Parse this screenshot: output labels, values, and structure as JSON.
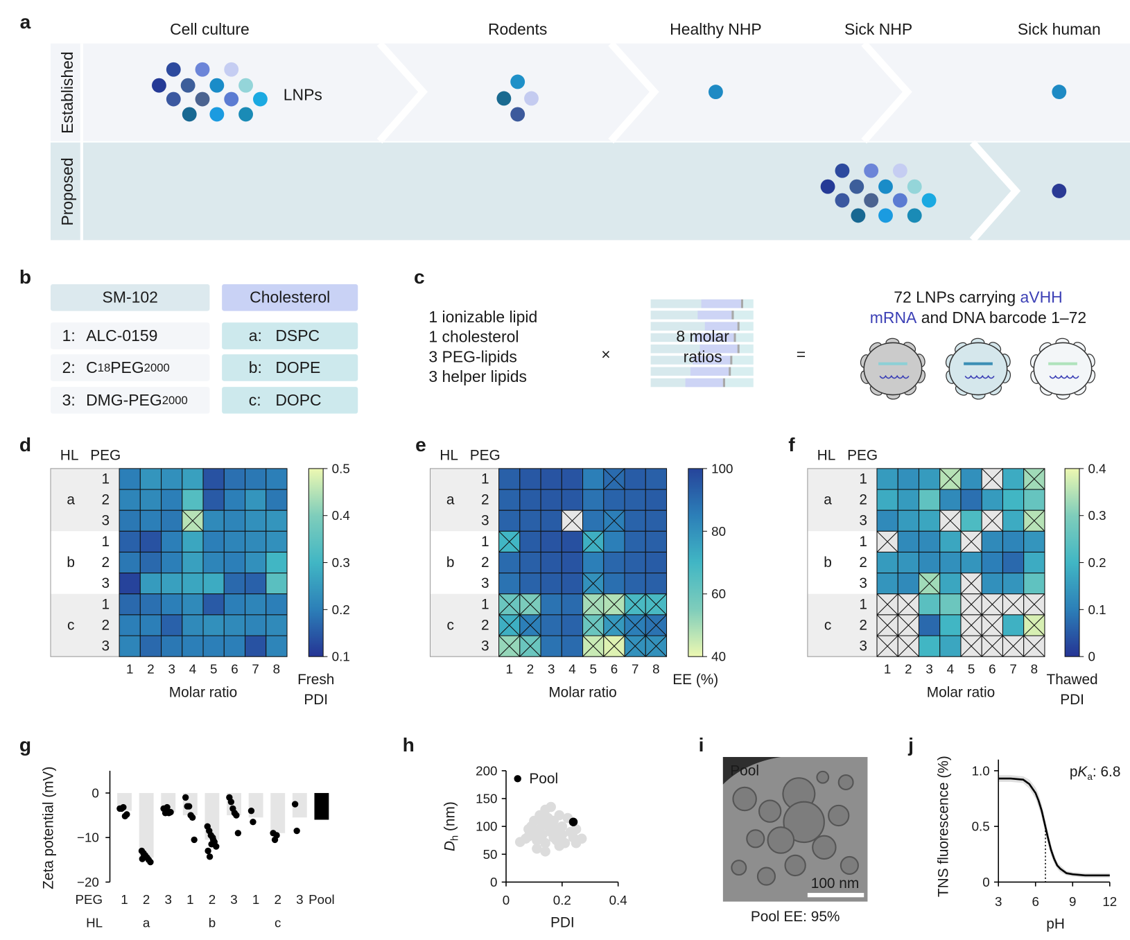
{
  "panel_labels": [
    "a",
    "b",
    "c",
    "d",
    "e",
    "f",
    "g",
    "h",
    "i",
    "j"
  ],
  "panel_a": {
    "stages": [
      "Cell culture",
      "Rodents",
      "Healthy NHP",
      "Sick NHP",
      "Sick human"
    ],
    "rows": [
      "Established",
      "Proposed"
    ],
    "cluster_label": "LNPs"
  },
  "panel_b": {
    "headers": [
      "SM-102",
      "Cholesterol"
    ],
    "peg_lipids": [
      {
        "index": "1:",
        "name": [
          "ALC-0159"
        ]
      },
      {
        "index": "2:",
        "name": [
          "C",
          "18",
          "PEG",
          "2000"
        ]
      },
      {
        "index": "3:",
        "name": [
          "DMG-PEG",
          "2000"
        ]
      }
    ],
    "helper_lipids": [
      {
        "index": "a:",
        "name": "DSPC"
      },
      {
        "index": "b:",
        "name": "DOPE"
      },
      {
        "index": "c:",
        "name": "DOPC"
      }
    ]
  },
  "panel_c": {
    "components": [
      "1 ionizable lipid",
      "1 cholesterol",
      "3 PEG-lipids",
      "3 helper lipids"
    ],
    "times": "×",
    "ratios": [
      "8 molar",
      "ratios"
    ],
    "equals": "=",
    "result": [
      [
        {
          "text": "72 LNPs carrying "
        },
        {
          "text": "aVHH",
          "color": "#3b3fb5"
        }
      ],
      [
        {
          "text": "mRNA",
          "color": "#3b3fb5"
        },
        {
          "text": " and DNA barcode 1–72"
        }
      ]
    ]
  },
  "panel_i": {
    "inset_label": "Pool",
    "scale_bar": "100 nm",
    "caption": "Pool EE: 95%"
  },
  "chart_data": [
    {
      "type": "heatmap",
      "group_header": "HL",
      "row_header": "PEG",
      "row_groups": [
        "a",
        "b",
        "c"
      ],
      "rows": [
        "1",
        "2",
        "3"
      ],
      "categories": [
        "1",
        "2",
        "3",
        "4",
        "5",
        "6",
        "7",
        "8"
      ],
      "xlabel": "Molar ratio",
      "colorbar_label": [
        "Fresh",
        "PDI"
      ],
      "clim": [
        0.1,
        0.5
      ],
      "cticks": [
        0.1,
        0.2,
        0.3,
        0.4,
        0.5
      ],
      "colormap": [
        "#253494",
        "#2c7fb8",
        "#41b6c4",
        "#7fcdbb",
        "#edf8b1"
      ],
      "missing_color": "#e6e6e6",
      "values": [
        [
          0.2,
          0.24,
          0.23,
          0.26,
          0.14,
          0.18,
          0.19,
          0.2
        ],
        [
          0.21,
          0.22,
          0.2,
          0.33,
          0.15,
          0.2,
          0.24,
          0.19
        ],
        [
          0.19,
          0.2,
          0.19,
          0.45,
          0.22,
          0.21,
          0.23,
          0.24
        ],
        [
          0.16,
          0.14,
          0.2,
          0.27,
          0.2,
          0.21,
          0.22,
          0.23
        ],
        [
          0.19,
          0.17,
          0.2,
          0.26,
          0.21,
          0.2,
          0.23,
          0.3
        ],
        [
          0.12,
          0.25,
          0.26,
          0.27,
          0.28,
          0.17,
          0.16,
          0.34
        ],
        [
          0.17,
          0.18,
          0.2,
          0.22,
          0.15,
          0.2,
          0.21,
          0.2
        ],
        [
          0.2,
          0.2,
          0.16,
          0.22,
          0.23,
          0.22,
          0.21,
          0.22
        ],
        [
          0.21,
          0.17,
          0.19,
          0.2,
          0.2,
          0.2,
          0.14,
          0.21
        ]
      ],
      "crossed": [
        [
          2,
          3
        ]
      ]
    },
    {
      "type": "heatmap",
      "group_header": "HL",
      "row_header": "PEG",
      "row_groups": [
        "a",
        "b",
        "c"
      ],
      "rows": [
        "1",
        "2",
        "3"
      ],
      "categories": [
        "1",
        "2",
        "3",
        "4",
        "5",
        "6",
        "7",
        "8"
      ],
      "xlabel": "Molar ratio",
      "colorbar_label": [
        "EE (%)"
      ],
      "clim": [
        40,
        100
      ],
      "cticks": [
        40,
        60,
        80,
        100
      ],
      "colormap": [
        "#edf8b1",
        "#7fcdbb",
        "#41b6c4",
        "#2c7fb8",
        "#26449a"
      ],
      "missing_color": "#e6e6e6",
      "values": [
        [
          93,
          95,
          96,
          96,
          85,
          90,
          94,
          93
        ],
        [
          92,
          94,
          95,
          95,
          88,
          92,
          93,
          94
        ],
        [
          92,
          93,
          94,
          null,
          88,
          85,
          92,
          93
        ],
        [
          70,
          94,
          96,
          97,
          72,
          85,
          92,
          93
        ],
        [
          90,
          93,
          95,
          96,
          85,
          91,
          93,
          94
        ],
        [
          88,
          92,
          94,
          95,
          80,
          89,
          92,
          93
        ],
        [
          60,
          56,
          88,
          90,
          50,
          48,
          68,
          68
        ],
        [
          72,
          85,
          90,
          92,
          60,
          78,
          85,
          88
        ],
        [
          52,
          60,
          88,
          90,
          45,
          42,
          80,
          80
        ]
      ],
      "crossed": [
        [
          0,
          5
        ],
        [
          2,
          5
        ],
        [
          3,
          0
        ],
        [
          3,
          4
        ],
        [
          5,
          4
        ],
        [
          6,
          0
        ],
        [
          6,
          1
        ],
        [
          6,
          4
        ],
        [
          6,
          5
        ],
        [
          6,
          6
        ],
        [
          6,
          7
        ],
        [
          7,
          0
        ],
        [
          7,
          1
        ],
        [
          7,
          4
        ],
        [
          7,
          5
        ],
        [
          7,
          6
        ],
        [
          7,
          7
        ],
        [
          8,
          0
        ],
        [
          8,
          1
        ],
        [
          8,
          4
        ],
        [
          8,
          5
        ],
        [
          8,
          6
        ],
        [
          8,
          7
        ]
      ]
    },
    {
      "type": "heatmap",
      "group_header": "HL",
      "row_header": "PEG",
      "row_groups": [
        "a",
        "b",
        "c"
      ],
      "rows": [
        "1",
        "2",
        "3"
      ],
      "categories": [
        "1",
        "2",
        "3",
        "4",
        "5",
        "6",
        "7",
        "8"
      ],
      "xlabel": "Molar ratio",
      "colorbar_label": [
        "Thawed",
        "PDI"
      ],
      "clim": [
        0,
        0.4
      ],
      "cticks": [
        0,
        0.1,
        0.2,
        0.3,
        0.4
      ],
      "colormap": [
        "#253494",
        "#2c7fb8",
        "#41b6c4",
        "#7fcdbb",
        "#edf8b1"
      ],
      "missing_color": "#e6e6e6",
      "values": [
        [
          0.15,
          0.13,
          0.15,
          0.35,
          0.13,
          null,
          0.18,
          0.33
        ],
        [
          0.18,
          0.15,
          0.25,
          0.12,
          0.08,
          0.15,
          0.2,
          0.26
        ],
        [
          0.12,
          0.15,
          0.17,
          null,
          0.22,
          null,
          0.18,
          0.35
        ],
        [
          null,
          0.12,
          0.12,
          0.17,
          null,
          0.12,
          0.11,
          0.14
        ],
        [
          0.15,
          0.14,
          0.12,
          0.13,
          0.14,
          0.1,
          0.07,
          0.18
        ],
        [
          0.14,
          0.12,
          0.33,
          0.17,
          null,
          0.13,
          0.14,
          0.25
        ],
        [
          null,
          null,
          0.24,
          0.27,
          null,
          null,
          null,
          null
        ],
        [
          null,
          null,
          0.07,
          0.2,
          null,
          null,
          0.19,
          0.38
        ],
        [
          null,
          null,
          0.2,
          0.17,
          null,
          null,
          null,
          null
        ]
      ],
      "crossed": [
        [
          0,
          3
        ],
        [
          0,
          7
        ],
        [
          2,
          7
        ],
        [
          5,
          2
        ],
        [
          7,
          7
        ]
      ]
    },
    {
      "type": "bar",
      "ylabel": "Zeta potential (mV)",
      "category_row_label": "PEG",
      "group_row_label": "HL",
      "categories": [
        "1",
        "2",
        "3",
        "1",
        "2",
        "3",
        "1",
        "2",
        "3",
        "Pool"
      ],
      "groups": [
        "a",
        "b",
        "c"
      ],
      "values": [
        -4,
        -14.5,
        -4.3,
        -5,
        -10.5,
        -5,
        -5.5,
        -9,
        -5.5,
        -6
      ],
      "colors": [
        "#e5e5e5",
        "#e5e5e5",
        "#e5e5e5",
        "#e5e5e5",
        "#e5e5e5",
        "#e5e5e5",
        "#e5e5e5",
        "#e5e5e5",
        "#e5e5e5",
        "#000000"
      ],
      "point_color": "#000000",
      "points": [
        [
          -3.5,
          -3.5,
          -3.2,
          -5.2,
          -4.8
        ],
        [
          -13,
          -13.5,
          -14,
          -14.5,
          -15,
          -15.5,
          -14.8,
          -14
        ],
        [
          -3.5,
          -4.5,
          -3.2,
          -4.5,
          -4.3
        ],
        [
          -1,
          -3,
          -3,
          -5,
          -5.5,
          -10.5
        ],
        [
          -7.5,
          -8.5,
          -9.5,
          -10,
          -11,
          -12,
          -13,
          -14.3,
          -11.5,
          -10.5
        ],
        [
          -1,
          -2,
          -3.5,
          -4.5,
          -5,
          -9
        ],
        [
          -4,
          -6.5
        ],
        [
          -9,
          -10.5,
          -9.5
        ],
        [
          -2.5,
          -8.5
        ],
        []
      ],
      "ylim": [
        -20,
        5
      ],
      "yticks": [
        {
          "value": -20,
          "label": "−20"
        },
        {
          "value": -10,
          "label": "−10"
        },
        0
      ]
    },
    {
      "type": "scatter",
      "xlabel": "PDI",
      "ylabel": [
        "D",
        "h",
        " (nm)"
      ],
      "xlim": [
        0,
        0.4
      ],
      "xticks": [
        0,
        0.2,
        0.4
      ],
      "ylim": [
        0,
        200
      ],
      "yticks": [
        0,
        50,
        100,
        150,
        200
      ],
      "series": [
        {
          "color": "#dcdcdc",
          "x": [
            0.05,
            0.07,
            0.08,
            0.09,
            0.1,
            0.1,
            0.11,
            0.12,
            0.12,
            0.13,
            0.13,
            0.14,
            0.14,
            0.15,
            0.15,
            0.16,
            0.16,
            0.17,
            0.17,
            0.18,
            0.18,
            0.19,
            0.2,
            0.2,
            0.21,
            0.22,
            0.23,
            0.24,
            0.25,
            0.25,
            0.27,
            0.08,
            0.11,
            0.14,
            0.19
          ],
          "y": [
            72,
            78,
            95,
            100,
            88,
            110,
            75,
            120,
            95,
            85,
            105,
            130,
            70,
            100,
            115,
            90,
            135,
            80,
            110,
            95,
            75,
            120,
            85,
            100,
            70,
            115,
            90,
            80,
            95,
            70,
            78,
            82,
            60,
            55,
            65
          ]
        },
        {
          "name": "Pool",
          "color": "#000000",
          "x": [
            0.24
          ],
          "y": [
            108
          ]
        }
      ]
    },
    {
      "type": "line",
      "xlabel": "pH",
      "ylabel": "TNS fluorescence (%)",
      "annotation": [
        "p",
        "K",
        "a",
        ": 6.8"
      ],
      "pka": 6.8,
      "x": [
        3,
        4,
        5,
        5.5,
        6,
        6.25,
        6.5,
        6.75,
        7,
        7.25,
        7.5,
        7.75,
        8,
        8.5,
        9,
        10,
        11,
        12
      ],
      "series": [
        {
          "color": "#000000",
          "band_color": "#dedede",
          "values": [
            0.93,
            0.93,
            0.92,
            0.88,
            0.8,
            0.73,
            0.64,
            0.52,
            0.4,
            0.29,
            0.21,
            0.15,
            0.12,
            0.08,
            0.07,
            0.06,
            0.06,
            0.06
          ],
          "error": [
            0.03,
            0.03,
            0.03,
            0.04,
            0.05,
            0.06,
            0.06,
            0.06,
            0.06,
            0.05,
            0.04,
            0.03,
            0.03,
            0.02,
            0.02,
            0.02,
            0.02,
            0.02
          ]
        }
      ],
      "xlim": [
        3,
        12
      ],
      "xticks": [
        3,
        6,
        9,
        12
      ],
      "ylim": [
        0,
        1.1
      ],
      "yticks": [
        0,
        0.5,
        {
          "value": 1,
          "label": "1.0"
        }
      ]
    }
  ]
}
